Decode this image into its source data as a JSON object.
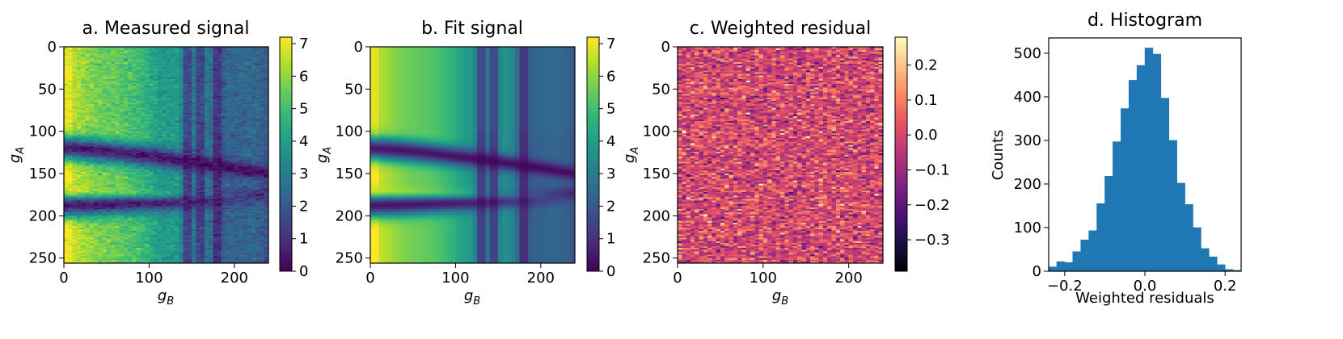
{
  "chart_data": [
    {
      "type": "heatmap",
      "title": "a. Measured signal",
      "xlabel": "g_B",
      "ylabel": "g_A",
      "x_ticks": [
        0,
        100,
        200
      ],
      "y_ticks": [
        0,
        50,
        100,
        150,
        200,
        250
      ],
      "xlim": [
        0,
        240
      ],
      "ylim": [
        256,
        0
      ],
      "colormap": "viridis",
      "colorbar": {
        "range": [
          0,
          7.2
        ],
        "ticks": [
          0,
          1,
          2,
          3,
          4,
          5,
          6,
          7
        ]
      },
      "noise": 0.3,
      "features": {
        "bands": [
          {
            "center_ga": 120,
            "curve_to": 150,
            "value": 0.1
          },
          {
            "center_ga": 188,
            "curve_to": 175,
            "value": 0.1
          }
        ],
        "bright_ridge": {
          "center_ga": 170,
          "value": 7.0
        },
        "dark_columns_gb": [
          145,
          160,
          180
        ],
        "left_edge_value": 7.2
      }
    },
    {
      "type": "heatmap",
      "title": "b. Fit signal",
      "xlabel": "g_B",
      "ylabel": "g_A",
      "x_ticks": [
        0,
        100,
        200
      ],
      "y_ticks": [
        0,
        50,
        100,
        150,
        200,
        250
      ],
      "xlim": [
        0,
        240
      ],
      "ylim": [
        256,
        0
      ],
      "colormap": "viridis",
      "colorbar": {
        "range": [
          0,
          7.2
        ],
        "ticks": [
          0,
          1,
          2,
          3,
          4,
          5,
          6,
          7
        ]
      },
      "noise": 0.0,
      "features": {
        "bands": [
          {
            "center_ga": 120,
            "curve_to": 150,
            "value": 0.1
          },
          {
            "center_ga": 188,
            "curve_to": 175,
            "value": 0.1
          }
        ],
        "bright_ridge": {
          "center_ga": 170,
          "value": 7.0
        },
        "dark_columns_gb": [
          130,
          145,
          180
        ],
        "left_edge_value": 7.2
      }
    },
    {
      "type": "heatmap",
      "title": "c. Weighted residual",
      "xlabel": "g_B",
      "ylabel": "g_A",
      "x_ticks": [
        0,
        100,
        200
      ],
      "y_ticks": [
        0,
        50,
        100,
        150,
        200,
        250
      ],
      "xlim": [
        0,
        240
      ],
      "ylim": [
        256,
        0
      ],
      "colormap": "magma",
      "colorbar": {
        "range": [
          -0.39,
          0.28
        ],
        "ticks": [
          0.2,
          0.1,
          0.0,
          -0.1,
          -0.2,
          -0.3
        ],
        "tick_labels": [
          "0.2",
          "0.1",
          "0.0",
          "−0.1",
          "−0.2",
          "−0.3"
        ]
      },
      "distribution": {
        "mean": 0.0,
        "std": 0.08
      }
    },
    {
      "type": "bar",
      "title": "d. Histogram",
      "xlabel": "Weighted residuals",
      "ylabel": "Counts",
      "xlim": [
        -0.24,
        0.24
      ],
      "ylim": [
        0,
        535
      ],
      "x_ticks": [
        -0.2,
        0.0,
        0.2
      ],
      "x_tick_labels": [
        "−0.2",
        "0.0",
        "0.2"
      ],
      "y_ticks": [
        0,
        100,
        200,
        300,
        400,
        500
      ],
      "color": "#1f77b4",
      "bin_edges": [
        -0.24,
        -0.22,
        -0.2,
        -0.18,
        -0.16,
        -0.14,
        -0.12,
        -0.1,
        -0.08,
        -0.06,
        -0.04,
        -0.02,
        0.0,
        0.02,
        0.04,
        0.06,
        0.08,
        0.1,
        0.12,
        0.14,
        0.16,
        0.18,
        0.2,
        0.22,
        0.24
      ],
      "values": [
        10,
        22,
        20,
        45,
        72,
        93,
        155,
        218,
        297,
        373,
        438,
        472,
        512,
        498,
        397,
        300,
        202,
        153,
        100,
        52,
        33,
        15,
        4,
        2
      ]
    }
  ]
}
